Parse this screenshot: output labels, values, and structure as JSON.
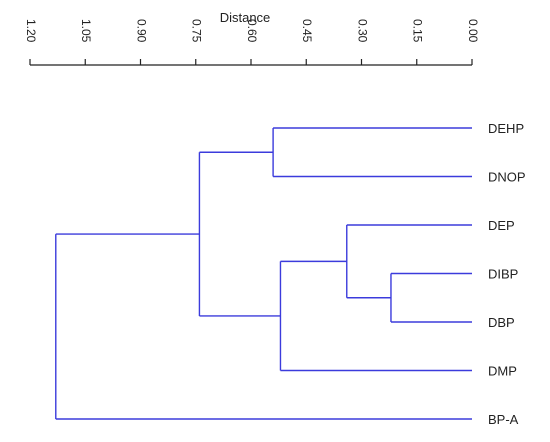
{
  "dendrogram": {
    "axis_title": "Distance",
    "axis_range": [
      0.0,
      1.2
    ],
    "axis_reversed": true,
    "ticks": [
      {
        "value": 1.2,
        "label": "1.20"
      },
      {
        "value": 1.05,
        "label": "1.05"
      },
      {
        "value": 0.9,
        "label": "0.90"
      },
      {
        "value": 0.75,
        "label": "0.75"
      },
      {
        "value": 0.6,
        "label": "0.60"
      },
      {
        "value": 0.45,
        "label": "0.45"
      },
      {
        "value": 0.3,
        "label": "0.30"
      },
      {
        "value": 0.15,
        "label": "0.15"
      },
      {
        "value": 0.0,
        "label": "0.00"
      }
    ],
    "leaves": [
      "DEHP",
      "DNOP",
      "DEP",
      "DIBP",
      "DBP",
      "DMP",
      "BP-A"
    ],
    "merges": [
      {
        "id": "m1",
        "children": [
          "DIBP",
          "DBP"
        ],
        "height": 0.22
      },
      {
        "id": "m2",
        "children": [
          "DEP",
          "m1"
        ],
        "height": 0.34
      },
      {
        "id": "m3",
        "children": [
          "m2",
          "DMP"
        ],
        "height": 0.52
      },
      {
        "id": "m4",
        "children": [
          "DEHP",
          "DNOP"
        ],
        "height": 0.54
      },
      {
        "id": "m5",
        "children": [
          "m4",
          "m3"
        ],
        "height": 0.74
      },
      {
        "id": "m6",
        "children": [
          "m5",
          "BP-A"
        ],
        "height": 1.13
      }
    ],
    "line_color": "#3b3bdc",
    "axis_color": "#222222"
  }
}
